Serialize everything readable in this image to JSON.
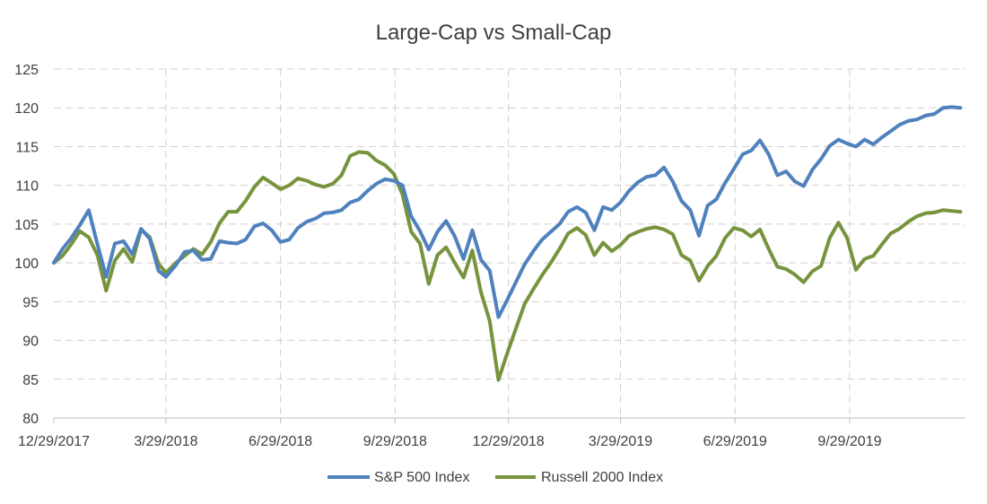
{
  "chart_data": {
    "type": "line",
    "title": "Large-Cap vs Small-Cap",
    "xlabel": "",
    "ylabel": "",
    "ylim": [
      80,
      125
    ],
    "y_ticks": [
      80,
      85,
      90,
      95,
      100,
      105,
      110,
      115,
      120,
      125
    ],
    "x_tick_labels": [
      "12/29/2017",
      "3/29/2018",
      "6/29/2018",
      "9/29/2018",
      "12/29/2018",
      "3/29/2019",
      "6/29/2019",
      "9/29/2019"
    ],
    "x_range": [
      "12/29/2017",
      "12/31/2019"
    ],
    "grid": true,
    "legend_position": "bottom",
    "colors": {
      "sp500": "#4f81bd",
      "russell": "#77933c"
    },
    "x": [
      "12/29/2017",
      "1/5/2018",
      "1/12/2018",
      "1/19/2018",
      "1/26/2018",
      "2/2/2018",
      "2/9/2018",
      "2/16/2018",
      "2/23/2018",
      "3/2/2018",
      "3/9/2018",
      "3/16/2018",
      "3/23/2018",
      "3/29/2018",
      "4/6/2018",
      "4/13/2018",
      "4/20/2018",
      "4/27/2018",
      "5/4/2018",
      "5/11/2018",
      "5/18/2018",
      "5/25/2018",
      "6/1/2018",
      "6/8/2018",
      "6/15/2018",
      "6/22/2018",
      "6/29/2018",
      "7/6/2018",
      "7/13/2018",
      "7/20/2018",
      "7/27/2018",
      "8/3/2018",
      "8/10/2018",
      "8/17/2018",
      "8/24/2018",
      "8/31/2018",
      "9/7/2018",
      "9/14/2018",
      "9/21/2018",
      "9/28/2018",
      "10/5/2018",
      "10/12/2018",
      "10/19/2018",
      "10/26/2018",
      "11/2/2018",
      "11/9/2018",
      "11/16/2018",
      "11/23/2018",
      "11/30/2018",
      "12/7/2018",
      "12/14/2018",
      "12/21/2018",
      "12/28/2018",
      "1/4/2019",
      "1/11/2019",
      "1/18/2019",
      "1/25/2019",
      "2/1/2019",
      "2/8/2019",
      "2/15/2019",
      "2/22/2019",
      "3/1/2019",
      "3/8/2019",
      "3/15/2019",
      "3/22/2019",
      "3/29/2019",
      "4/5/2019",
      "4/12/2019",
      "4/19/2019",
      "4/26/2019",
      "5/3/2019",
      "5/10/2019",
      "5/17/2019",
      "5/24/2019",
      "5/31/2019",
      "6/7/2019",
      "6/14/2019",
      "6/21/2019",
      "6/28/2019",
      "7/5/2019",
      "7/12/2019",
      "7/19/2019",
      "7/26/2019",
      "8/2/2019",
      "8/9/2019",
      "8/16/2019",
      "8/23/2019",
      "8/30/2019",
      "9/6/2019",
      "9/13/2019",
      "9/20/2019",
      "9/27/2019",
      "10/4/2019",
      "10/11/2019",
      "10/18/2019",
      "10/25/2019",
      "11/1/2019",
      "11/8/2019",
      "11/15/2019",
      "11/22/2019",
      "11/29/2019",
      "12/6/2019",
      "12/13/2019",
      "12/20/2019",
      "12/27/2019"
    ],
    "series": [
      {
        "name": "S&P 500 Index",
        "values": [
          100,
          101.8,
          103.2,
          104.9,
          106.8,
          102.4,
          98.2,
          102.5,
          102.8,
          101.1,
          104.4,
          103.1,
          99.0,
          98.2,
          99.7,
          101.4,
          101.6,
          100.4,
          100.5,
          102.8,
          102.6,
          102.5,
          103.0,
          104.7,
          105.1,
          104.2,
          102.7,
          103.0,
          104.5,
          105.3,
          105.7,
          106.4,
          106.5,
          106.8,
          107.8,
          108.2,
          109.3,
          110.2,
          110.8,
          110.6,
          110.0,
          106.0,
          104.1,
          101.7,
          104.0,
          105.4,
          103.4,
          100.5,
          104.2,
          100.4,
          99.0,
          93.0,
          95.2,
          97.5,
          99.8,
          101.5,
          103.0,
          104.0,
          105.0,
          106.6,
          107.2,
          106.5,
          104.2,
          107.2,
          106.8,
          107.8,
          109.3,
          110.4,
          111.1,
          111.3,
          112.3,
          110.5,
          108.0,
          106.8,
          103.5,
          107.4,
          108.2,
          110.3,
          112.1,
          114.0,
          114.5,
          115.8,
          114.0,
          111.3,
          111.8,
          110.5,
          109.9,
          112.0,
          113.4,
          115.1,
          115.9,
          115.4,
          115.0,
          115.9,
          115.3,
          116.2,
          117.0,
          117.8,
          118.3,
          118.5,
          119.0,
          119.2,
          120.0,
          120.1,
          120.0
        ]
      },
      {
        "name": "Russell 2000 Index",
        "values": [
          100,
          100.9,
          102.4,
          104.1,
          103.3,
          101.0,
          96.4,
          100.3,
          101.8,
          100.1,
          104.3,
          103.3,
          99.9,
          98.7,
          100.0,
          100.9,
          101.8,
          101.1,
          102.7,
          105.1,
          106.6,
          106.6,
          108.0,
          109.8,
          111.0,
          110.3,
          109.5,
          110.0,
          110.9,
          110.6,
          110.1,
          109.8,
          110.2,
          111.3,
          113.8,
          114.3,
          114.2,
          113.2,
          112.6,
          111.5,
          108.8,
          104.0,
          102.5,
          97.3,
          101.0,
          102.0,
          100.0,
          98.1,
          101.6,
          96.2,
          92.5,
          84.9,
          88.3,
          91.5,
          94.7,
          96.6,
          98.4,
          100.0,
          101.8,
          103.8,
          104.5,
          103.6,
          101.0,
          102.6,
          101.5,
          102.3,
          103.5,
          104.0,
          104.4,
          104.6,
          104.3,
          103.7,
          101.0,
          100.3,
          97.7,
          99.6,
          100.9,
          103.2,
          104.5,
          104.2,
          103.4,
          104.3,
          101.8,
          99.5,
          99.2,
          98.5,
          97.5,
          98.9,
          99.6,
          103.2,
          105.2,
          103.2,
          99.1,
          100.5,
          100.9,
          102.4,
          103.8,
          104.4,
          105.3,
          106.0,
          106.4,
          106.5,
          106.8,
          106.7,
          106.6
        ]
      }
    ]
  }
}
